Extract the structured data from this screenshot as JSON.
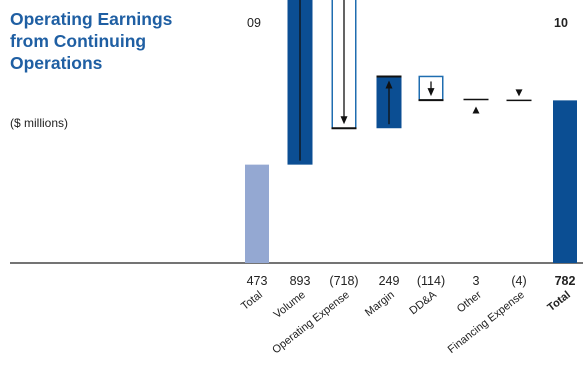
{
  "title": "Operating Earnings from Continuing Operations",
  "subtitle": "($ millions)",
  "year_labels": {
    "start": "09",
    "end": "10"
  },
  "colors": {
    "title_blue": "#1f5fa3",
    "dark_blue": "#0b4e93",
    "light_blue": "#94a8d2",
    "outline_blue": "#1f6db0"
  },
  "chart_data": {
    "type": "bar",
    "subtype": "waterfall",
    "title": "Operating Earnings from Continuing Operations",
    "ylabel": "($ millions)",
    "ylim": [
      0,
      1130
    ],
    "categories": [
      "Total",
      "Volume",
      "Operating Expense",
      "Margin",
      "DD&A",
      "Other",
      "Financing Expense",
      "Total"
    ],
    "values": [
      473,
      893,
      -718,
      249,
      -114,
      3,
      -4,
      782
    ],
    "value_labels": [
      "473",
      "893",
      "(718)",
      "249",
      "(114)",
      "3",
      "(4)",
      "782"
    ],
    "bar_kinds": [
      "total-start",
      "increase",
      "decrease",
      "increase",
      "decrease",
      "increase",
      "decrease",
      "total-end"
    ],
    "bold_categories": [
      7
    ],
    "grid": false,
    "legend": "none"
  }
}
